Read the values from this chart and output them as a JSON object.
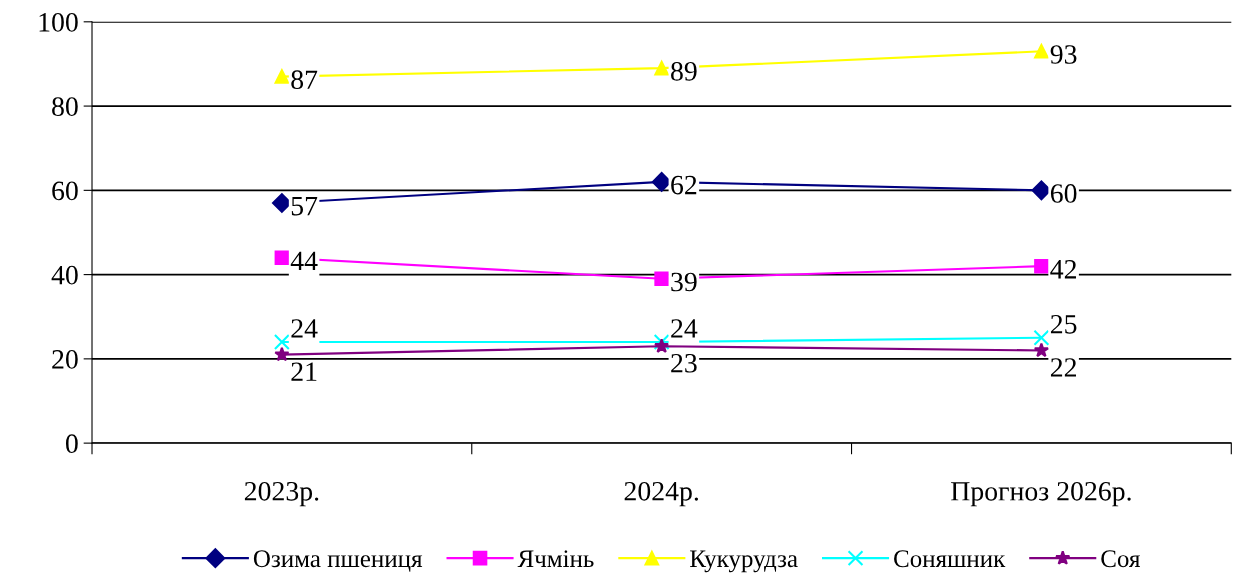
{
  "chart_data": {
    "type": "line",
    "categories": [
      "2023р.",
      "2024р.",
      "Прогноз 2026р."
    ],
    "series": [
      {
        "name": "Озима пшениця",
        "color": "#000080",
        "marker": "diamond",
        "values": [
          57,
          62,
          60
        ]
      },
      {
        "name": "Ячмінь",
        "color": "#ff00ff",
        "marker": "square",
        "values": [
          44,
          39,
          42
        ]
      },
      {
        "name": "Кукурудза",
        "color": "#ffff00",
        "marker": "triangle",
        "values": [
          87,
          89,
          93
        ]
      },
      {
        "name": "Соняшник",
        "color": "#00ffff",
        "marker": "cross",
        "values": [
          24,
          24,
          25
        ]
      },
      {
        "name": "Соя",
        "color": "#800080",
        "marker": "star",
        "values": [
          21,
          23,
          22
        ]
      }
    ],
    "ylim": [
      0,
      100
    ],
    "yticks": [
      0,
      20,
      40,
      60,
      80,
      100
    ],
    "grid": "y",
    "legend": "bottom",
    "data_labels": true,
    "line_style": "solid"
  }
}
